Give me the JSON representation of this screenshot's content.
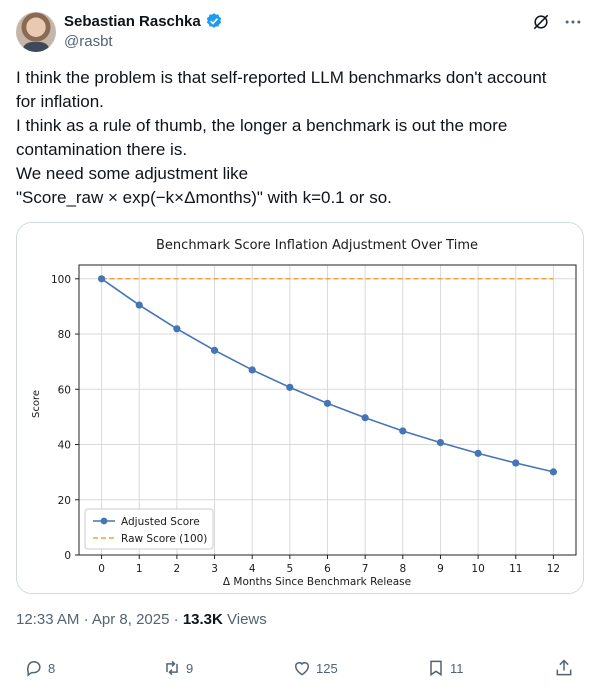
{
  "author": {
    "name": "Sebastian Raschka",
    "handle": "@rasbt"
  },
  "tweet": {
    "lines": [
      "I think the problem is that self-reported LLM benchmarks don't account",
      "for inflation.",
      "I think as a rule of thumb, the longer a benchmark is out the more",
      "contamination there is.",
      "We need some adjustment like",
      "\"Score_raw × exp(−k×Δmonths)\" with k=0.1 or so."
    ]
  },
  "meta": {
    "time": "12:33 AM",
    "date": "Apr 8, 2025",
    "views_count": "13.3K",
    "views_label": "Views",
    "sep": "·"
  },
  "actions": {
    "replies": "8",
    "reposts": "9",
    "likes": "125",
    "bookmarks": "11"
  },
  "colors": {
    "accent": "#1d9bf0",
    "adjusted": "#4575b4",
    "raw": "#f5a142"
  },
  "icons": [
    "verified-icon",
    "grok-icon",
    "more-icon",
    "reply-icon",
    "repost-icon",
    "like-icon",
    "bookmark-icon",
    "share-icon"
  ],
  "chart_data": {
    "type": "line",
    "title": "Benchmark Score Inflation Adjustment Over Time",
    "xlabel": "Δ Months Since Benchmark Release",
    "ylabel": "Score",
    "x": [
      0,
      1,
      2,
      3,
      4,
      5,
      6,
      7,
      8,
      9,
      10,
      11,
      12
    ],
    "xlim": [
      -0.6,
      12.6
    ],
    "ylim": [
      0,
      105
    ],
    "yticks": [
      0,
      20,
      40,
      60,
      80,
      100
    ],
    "grid": true,
    "legend_position": "bottom-left",
    "series": [
      {
        "name": "Adjusted Score",
        "values": [
          100,
          90.5,
          81.9,
          74.1,
          67.0,
          60.7,
          54.9,
          49.7,
          44.9,
          40.7,
          36.8,
          33.3,
          30.1
        ]
      },
      {
        "name": "Raw Score (100)",
        "values": [
          100,
          100,
          100,
          100,
          100,
          100,
          100,
          100,
          100,
          100,
          100,
          100,
          100
        ]
      }
    ]
  }
}
